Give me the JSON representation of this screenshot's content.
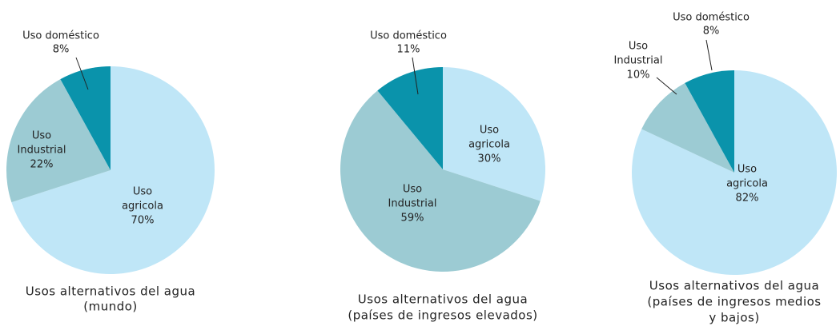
{
  "chart_data": [
    {
      "type": "pie",
      "title": [
        "Usos alternativos del agua",
        "(mundo)"
      ],
      "categories": [
        [
          "Uso",
          "agricola"
        ],
        [
          "Uso",
          "Industrial"
        ],
        [
          "Uso doméstico"
        ]
      ],
      "values": [
        70,
        22,
        8
      ],
      "value_labels": [
        "70%",
        "22%",
        "8%"
      ],
      "colors": [
        "#bfe6f7",
        "#9ccbd3",
        "#0a93ab"
      ]
    },
    {
      "type": "pie",
      "title": [
        "Usos alternativos del agua",
        "(países de ingresos elevados)"
      ],
      "categories": [
        [
          "Uso",
          "agricola"
        ],
        [
          "Uso",
          "Industrial"
        ],
        [
          "Uso doméstico"
        ]
      ],
      "values": [
        30,
        59,
        11
      ],
      "value_labels": [
        "30%",
        "59%",
        "11%"
      ],
      "colors": [
        "#bfe6f7",
        "#9ccbd3",
        "#0a93ab"
      ]
    },
    {
      "type": "pie",
      "title": [
        "Usos alternativos del agua",
        "(países de ingresos medios",
        "y bajos)"
      ],
      "categories": [
        [
          "Uso",
          "agricola"
        ],
        [
          "Uso",
          "Industrial"
        ],
        [
          "Uso doméstico"
        ]
      ],
      "values": [
        82,
        10,
        8
      ],
      "value_labels": [
        "82%",
        "10%",
        "8%"
      ],
      "colors": [
        "#bfe6f7",
        "#9ccbd3",
        "#0a93ab"
      ]
    }
  ]
}
